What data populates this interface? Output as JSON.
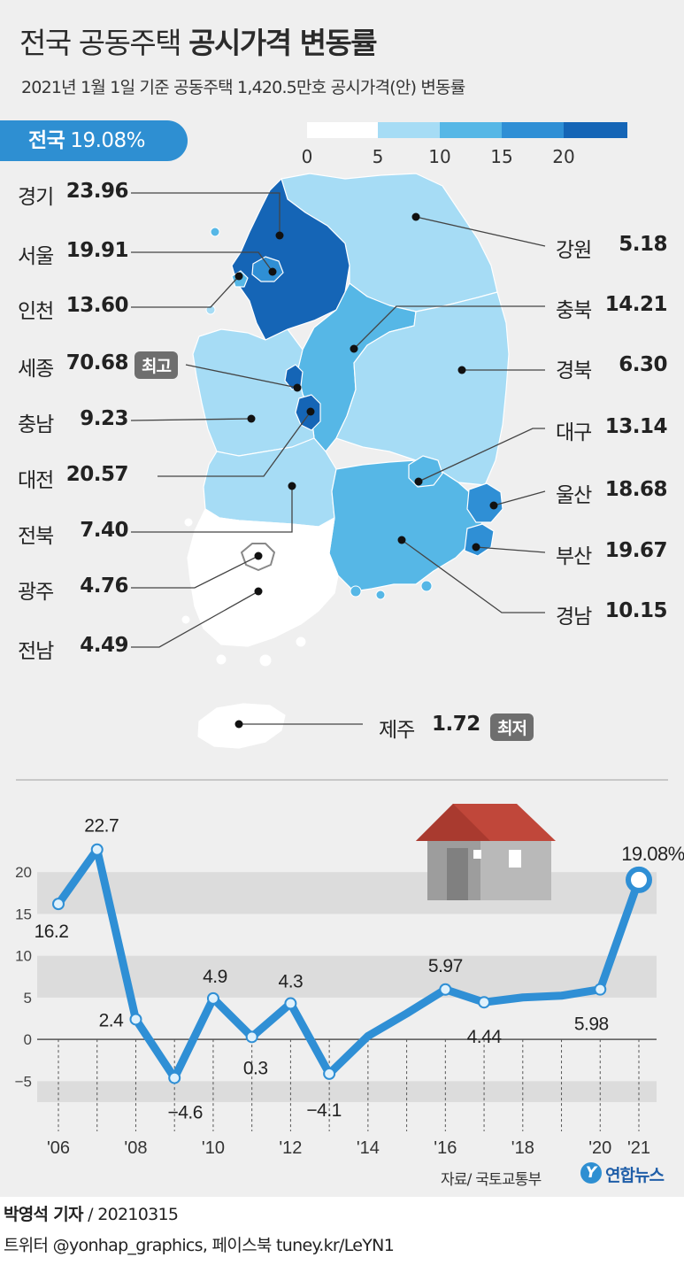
{
  "header": {
    "title_light": "전국 공동주택",
    "title_bold": "공시가격 변동률",
    "subtitle": "2021년 1월 1일 기준 공동주택 1,420.5만호 공시가격(안) 변동률"
  },
  "nation": {
    "label": "전국",
    "value": "19.08%"
  },
  "scale": {
    "ticks": [
      "0",
      "5",
      "10",
      "15",
      "20"
    ],
    "colors": [
      "#ffffff",
      "#a6dcf5",
      "#56b7e6",
      "#2f8fd5",
      "#1565b6"
    ]
  },
  "regions": [
    {
      "name": "경기",
      "value": "23.96",
      "color": "#1565b6"
    },
    {
      "name": "서울",
      "value": "19.91",
      "color": "#2f8fd5"
    },
    {
      "name": "인천",
      "value": "13.60",
      "color": "#56b7e6"
    },
    {
      "name": "세종",
      "value": "70.68",
      "color": "#1565b6",
      "tag": "최고"
    },
    {
      "name": "충남",
      "value": "9.23",
      "color": "#a6dcf5"
    },
    {
      "name": "대전",
      "value": "20.57",
      "color": "#1565b6"
    },
    {
      "name": "전북",
      "value": "7.40",
      "color": "#a6dcf5"
    },
    {
      "name": "광주",
      "value": "4.76",
      "color": "#ffffff"
    },
    {
      "name": "전남",
      "value": "4.49",
      "color": "#ffffff"
    },
    {
      "name": "강원",
      "value": "5.18",
      "color": "#a6dcf5"
    },
    {
      "name": "충북",
      "value": "14.21",
      "color": "#56b7e6"
    },
    {
      "name": "경북",
      "value": "6.30",
      "color": "#a6dcf5"
    },
    {
      "name": "대구",
      "value": "13.14",
      "color": "#56b7e6"
    },
    {
      "name": "울산",
      "value": "18.68",
      "color": "#2f8fd5"
    },
    {
      "name": "부산",
      "value": "19.67",
      "color": "#2f8fd5"
    },
    {
      "name": "경남",
      "value": "10.15",
      "color": "#56b7e6"
    },
    {
      "name": "제주",
      "value": "1.72",
      "color": "#ffffff",
      "tag": "최저"
    }
  ],
  "chart_data": {
    "type": "line",
    "title": "",
    "xlabel": "",
    "ylabel": "",
    "x": [
      2006,
      2007,
      2008,
      2009,
      2010,
      2011,
      2012,
      2013,
      2014,
      2015,
      2016,
      2017,
      2018,
      2019,
      2020,
      2021
    ],
    "values": [
      16.2,
      22.7,
      2.4,
      -4.6,
      4.9,
      0.3,
      4.3,
      -4.1,
      0.4,
      3.1,
      5.97,
      4.44,
      5.02,
      5.23,
      5.98,
      19.08
    ],
    "data_labels": [
      "16.2",
      "22.7",
      "2.4",
      "−4.6",
      "4.9",
      "0.3",
      "4.3",
      "−4.1",
      "",
      "",
      "5.97",
      "4.44",
      "",
      "",
      "5.98",
      "19.08%"
    ],
    "x_tick_labels": [
      "'06",
      "'08",
      "'10",
      "'12",
      "'14",
      "'16",
      "'18",
      "'20",
      "'21"
    ],
    "x_tick_years": [
      2006,
      2008,
      2010,
      2012,
      2014,
      2016,
      2018,
      2020,
      2021
    ],
    "y_ticks": [
      -5,
      0,
      5,
      10,
      15,
      20
    ],
    "y_tick_labels": [
      "−5",
      "0",
      "5",
      "10",
      "15",
      "20"
    ],
    "ylim": [
      -7.5,
      25
    ],
    "grid": true,
    "line_color": "#2f8fd5"
  },
  "footer": {
    "source": "자료/ 국토교통부",
    "brand_logo": "Y",
    "brand": "연합뉴스",
    "reporter": "박영석 기자",
    "date": "/ 20210315",
    "social": "트위터 @yonhap_graphics, 페이스북 tuney.kr/LeYN1"
  }
}
